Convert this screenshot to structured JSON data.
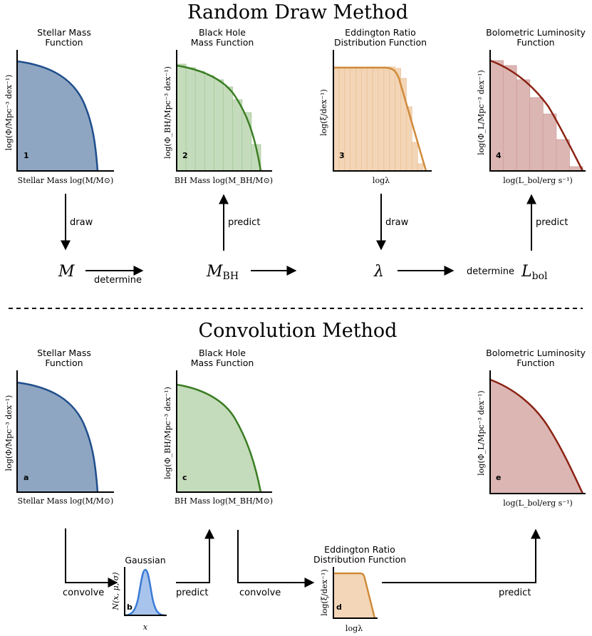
{
  "titles": {
    "random": "Random Draw Method",
    "convolution": "Convolution Method"
  },
  "panels": {
    "smf": {
      "title1": "Stellar Mass",
      "title2": "Function",
      "ylabel": "log(Φ/Mpc⁻³ dex⁻¹)",
      "xlabel": "Stellar Mass log(M/M⊙)"
    },
    "bhmf": {
      "title1": "Black Hole",
      "title2": "Mass Function",
      "ylabel": "log(Φ_BH/Mpc⁻³ dex⁻¹)",
      "xlabel": "BH Mass log(M_BH/M⊙)"
    },
    "erdf": {
      "title1": "Eddington Ratio",
      "title2": "Distribution Function",
      "ylabel": "log(ξ/dex⁻¹)",
      "xlabel": "logλ"
    },
    "blf": {
      "title1": "Bolometric Luminosity",
      "title2": "Function",
      "ylabel": "log(Φ_L/Mpc⁻³ dex⁻¹)",
      "xlabel": "log(L_bol/erg s⁻¹)"
    },
    "gauss": {
      "title": "Gaussian",
      "ylabel": "N(x, μ, σ)",
      "xlabel": "x"
    }
  },
  "markers": {
    "smf_random": "1",
    "bhmf_random": "2",
    "erdf_random": "3",
    "blf_random": "4",
    "smf_conv": "a",
    "gauss_conv": "b",
    "bhmf_conv": "c",
    "erdf_conv": "d",
    "blf_conv": "e"
  },
  "flow": {
    "draw": "draw",
    "predict": "predict",
    "determine": "determine",
    "convolve": "convolve"
  },
  "variables": {
    "M": "M",
    "MBH_main": "M",
    "MBH_sub": "BH",
    "lambda": "λ",
    "Lbol_main": "L",
    "Lbol_sub": "bol"
  },
  "colors": {
    "blue_line": "#1f4e8c",
    "blue_fill": "#8fa6c2",
    "green_line": "#3a7d23",
    "green_fill": "#c4dcbb",
    "orange_line": "#d08a3a",
    "orange_fill": "#f3d6b7",
    "red_line": "#8b2314",
    "red_fill": "#dcb6b3",
    "gauss_line": "#3a7bd5",
    "gauss_fill": "#a8c4ec"
  }
}
